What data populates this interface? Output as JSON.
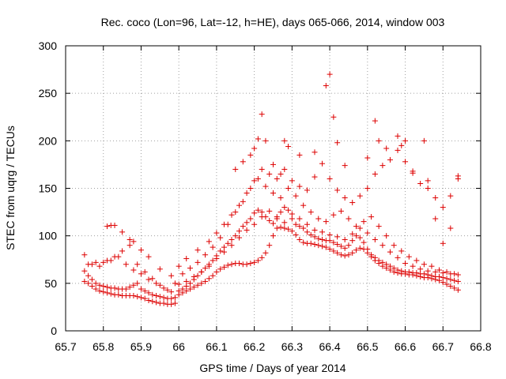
{
  "chart_data": {
    "type": "scatter",
    "title": "Rec. coco (Lon=96, Lat=-12, h=HE), days 065-066, 2014, window 003",
    "xlabel": "GPS time / Days of year 2014",
    "ylabel": "STEC from uqrg / TECUs",
    "xlim": [
      65.7,
      66.8
    ],
    "ylim": [
      0,
      300
    ],
    "xticks": [
      "65.7",
      "65.8",
      "65.9",
      "66",
      "66.1",
      "66.2",
      "66.3",
      "66.4",
      "66.5",
      "66.6",
      "66.7",
      "66.8"
    ],
    "yticks": [
      "0",
      "50",
      "100",
      "150",
      "200",
      "250",
      "300"
    ],
    "grid": true,
    "marker": "plus",
    "marker_color": "#dd0000",
    "series": [
      {
        "x": [
          65.75,
          65.76,
          65.77,
          65.78,
          65.79,
          65.8,
          65.81,
          65.82,
          65.83,
          65.84,
          65.85,
          65.86,
          65.87,
          65.88,
          65.89,
          65.9,
          65.91,
          65.92,
          65.93,
          65.94,
          65.95,
          65.96,
          65.97,
          65.98,
          65.99,
          66.0,
          66.01,
          66.02,
          66.03,
          66.04,
          66.05,
          66.06,
          66.07,
          66.08,
          66.09,
          66.1,
          66.11,
          66.12,
          66.13,
          66.14,
          66.15,
          66.16,
          66.17,
          66.18,
          66.19,
          66.2,
          66.21,
          66.22,
          66.23,
          66.24,
          66.25,
          66.26,
          66.27,
          66.28,
          66.29,
          66.3,
          66.31,
          66.32,
          66.33,
          66.34,
          66.35,
          66.36,
          66.37,
          66.38,
          66.39,
          66.4,
          66.41,
          66.42,
          66.43,
          66.44,
          66.45,
          66.46,
          66.47,
          66.48,
          66.49,
          66.5,
          66.51,
          66.52,
          66.53,
          66.54,
          66.55,
          66.56,
          66.57,
          66.58,
          66.59,
          66.6,
          66.61,
          66.62,
          66.63,
          66.64,
          66.65,
          66.66,
          66.67,
          66.68,
          66.69,
          66.7,
          66.71,
          66.72,
          66.73,
          66.74
        ],
        "y": [
          52,
          50,
          47,
          44,
          42,
          41,
          40,
          39,
          38,
          38,
          37,
          37,
          37,
          37,
          36,
          35,
          34,
          32,
          31,
          30,
          29,
          29,
          28,
          28,
          29,
          38,
          40,
          42,
          44,
          46,
          48,
          50,
          52,
          55,
          58,
          62,
          65,
          67,
          69,
          70,
          71,
          71,
          70,
          70,
          71,
          72,
          74,
          77,
          82,
          90,
          100,
          108,
          109,
          108,
          107,
          105,
          101,
          96,
          93,
          92,
          92,
          91,
          90,
          89,
          88,
          86,
          84,
          82,
          80,
          79,
          80,
          82,
          85,
          87,
          86,
          82,
          78,
          74,
          71,
          68,
          66,
          64,
          62,
          61,
          60,
          60,
          59,
          59,
          58,
          57,
          56,
          56,
          55,
          54,
          53,
          51,
          49,
          47,
          45,
          43
        ]
      },
      {
        "x": [
          65.75,
          65.76,
          65.77,
          65.78,
          65.79,
          65.8,
          65.81,
          65.82,
          65.83,
          65.84,
          65.85,
          65.86,
          65.87,
          65.88,
          65.89,
          65.9,
          65.91,
          65.92,
          65.93,
          65.94,
          65.95,
          65.96,
          65.97,
          65.98,
          65.99,
          66.0,
          66.01,
          66.02,
          66.03,
          66.04,
          66.05,
          66.06,
          66.07,
          66.08,
          66.09,
          66.1,
          66.11,
          66.12,
          66.13,
          66.14,
          66.15,
          66.16,
          66.17,
          66.18,
          66.19,
          66.2,
          66.21,
          66.22,
          66.23,
          66.24,
          66.25,
          66.26,
          66.27,
          66.28,
          66.29,
          66.3,
          66.31,
          66.32,
          66.33,
          66.34,
          66.35,
          66.36,
          66.37,
          66.38,
          66.39,
          66.4,
          66.41,
          66.42,
          66.43,
          66.44,
          66.45,
          66.46,
          66.47,
          66.48,
          66.49,
          66.5,
          66.51,
          66.52,
          66.53,
          66.54,
          66.55,
          66.56,
          66.57,
          66.58,
          66.59,
          66.6,
          66.61,
          66.62,
          66.63,
          66.64,
          66.65,
          66.66,
          66.67,
          66.68,
          66.69,
          66.7,
          66.71,
          66.72,
          66.73,
          66.74
        ],
        "y": [
          63,
          58,
          54,
          50,
          48,
          47,
          46,
          45,
          45,
          44,
          44,
          44,
          46,
          48,
          50,
          44,
          42,
          40,
          38,
          37,
          36,
          35,
          34,
          34,
          35,
          42,
          44,
          47,
          50,
          54,
          58,
          62,
          66,
          70,
          74,
          79,
          84,
          88,
          92,
          96,
          100,
          105,
          110,
          114,
          118,
          124,
          127,
          125,
          120,
          116,
          113,
          118,
          125,
          130,
          127,
          118,
          112,
          110,
          108,
          104,
          101,
          99,
          97,
          96,
          95,
          95,
          93,
          91,
          89,
          87,
          90,
          95,
          100,
          98,
          93,
          86,
          80,
          77,
          74,
          72,
          70,
          68,
          66,
          64,
          63,
          62,
          62,
          61,
          61,
          60,
          60,
          59,
          58,
          57,
          57,
          56,
          55,
          54,
          53,
          52
        ]
      },
      {
        "x": [
          65.76,
          65.78,
          65.8,
          65.82,
          65.84,
          65.86,
          65.88,
          65.9,
          65.92,
          65.94,
          65.96,
          65.98,
          66.0,
          66.02,
          66.04,
          66.06,
          66.08,
          66.1,
          66.12,
          66.14,
          66.16,
          66.18,
          66.2,
          66.22,
          66.24,
          66.26,
          66.28,
          66.3,
          66.32,
          66.34,
          66.36,
          66.38,
          66.4,
          66.42,
          66.44,
          66.46,
          66.48,
          66.5,
          66.52,
          66.54,
          66.56,
          66.58,
          66.6,
          66.62,
          66.64,
          66.66,
          66.68,
          66.7,
          66.72,
          66.74
        ],
        "y": [
          70,
          72,
          72,
          74,
          78,
          70,
          64,
          60,
          54,
          50,
          45,
          41,
          49,
          52,
          57,
          62,
          68,
          76,
          83,
          90,
          98,
          106,
          112,
          120,
          126,
          120,
          114,
          123,
          118,
          112,
          106,
          104,
          101,
          99,
          96,
          102,
          108,
          103,
          96,
          90,
          83,
          77,
          71,
          68,
          65,
          63,
          62,
          61,
          60,
          59
        ]
      },
      {
        "x": [
          65.75,
          65.77,
          65.79,
          65.81,
          65.83,
          65.85,
          65.87,
          65.89,
          65.91,
          65.93,
          65.95,
          65.97,
          65.99,
          66.01,
          66.03,
          66.05,
          66.07,
          66.09,
          66.11,
          66.13,
          66.15,
          66.17,
          66.19,
          66.21,
          66.23,
          66.25,
          66.27,
          66.29,
          66.31,
          66.33,
          66.35,
          66.37,
          66.39,
          66.41,
          66.43,
          66.45,
          66.47,
          66.49,
          66.51,
          66.53,
          66.55,
          66.57,
          66.59,
          66.61,
          66.63,
          66.65,
          66.67,
          66.69,
          66.71,
          66.73
        ],
        "y": [
          80,
          70,
          68,
          74,
          78,
          84,
          90,
          70,
          62,
          55,
          48,
          43,
          50,
          60,
          66,
          72,
          80,
          88,
          98,
          112,
          125,
          136,
          150,
          160,
          152,
          145,
          140,
          150,
          142,
          132,
          125,
          118,
          115,
          122,
          126,
          118,
          110,
          115,
          120,
          110,
          100,
          90,
          84,
          78,
          74,
          70,
          68,
          64,
          62,
          60
        ]
      },
      {
        "x": [
          65.81,
          65.82,
          65.83,
          65.85,
          65.87,
          65.88,
          65.9,
          65.92,
          65.95,
          65.98,
          66.0,
          66.02,
          66.05,
          66.08,
          66.1,
          66.12,
          66.14,
          66.16,
          66.18,
          66.2,
          66.22,
          66.24,
          66.26,
          66.28,
          66.3,
          66.32,
          66.34,
          66.36,
          66.38,
          66.4,
          66.42,
          66.44,
          66.46,
          66.48,
          66.5,
          66.52,
          66.54,
          66.56,
          66.58,
          66.6,
          66.62,
          66.64,
          66.66,
          66.68,
          66.7,
          66.72,
          66.74
        ],
        "y": [
          110,
          111,
          111,
          104,
          96,
          94,
          85,
          78,
          65,
          58,
          68,
          76,
          85,
          94,
          103,
          112,
          122,
          132,
          145,
          158,
          170,
          165,
          160,
          170,
          158,
          152,
          148,
          162,
          176,
          160,
          148,
          140,
          135,
          142,
          150,
          165,
          174,
          180,
          190,
          178,
          166,
          155,
          150,
          140,
          130,
          142,
          160
        ]
      },
      {
        "x": [
          66.15,
          66.17,
          66.19,
          66.2,
          66.21,
          66.22,
          66.23,
          66.25,
          66.27,
          66.28,
          66.29,
          66.32,
          66.36,
          66.39,
          66.4,
          66.41,
          66.42,
          66.44,
          66.5,
          66.52,
          66.53,
          66.55,
          66.58,
          66.59,
          66.6,
          66.62,
          66.65,
          66.66,
          66.68,
          66.7,
          66.72,
          66.74
        ],
        "y": [
          170,
          178,
          185,
          192,
          202,
          228,
          200,
          175,
          165,
          200,
          194,
          185,
          188,
          258,
          270,
          225,
          198,
          174,
          182,
          221,
          200,
          192,
          205,
          195,
          200,
          168,
          200,
          158,
          118,
          92,
          108,
          163
        ]
      }
    ]
  }
}
